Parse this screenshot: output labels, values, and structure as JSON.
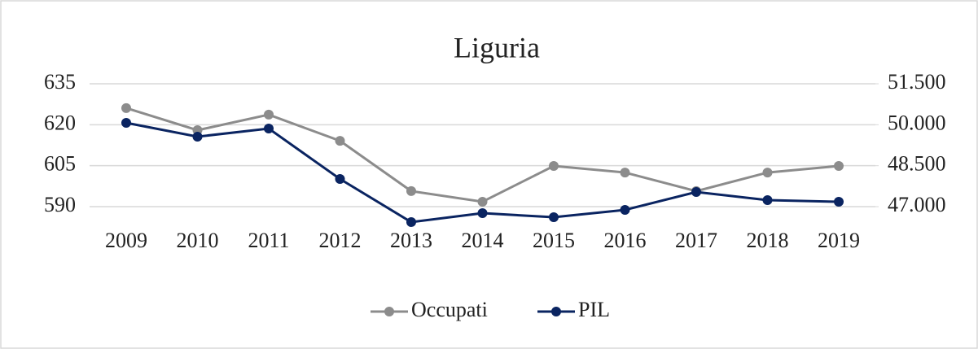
{
  "chart_data": {
    "type": "line",
    "title": "Liguria",
    "categories": [
      "2009",
      "2010",
      "2011",
      "2012",
      "2013",
      "2014",
      "2015",
      "2016",
      "2017",
      "2018",
      "2019"
    ],
    "series": [
      {
        "name": "Occupati",
        "color": "#8c8c8c",
        "values": [
          626.1,
          618.0,
          623.7,
          614.1,
          595.7,
          591.8,
          604.9,
          602.5,
          595.7,
          602.5,
          604.9
        ]
      },
      {
        "name": "PIL",
        "color": "#0a2461",
        "axis": "y2",
        "values": [
          50070,
          49563,
          49861,
          48013,
          46434,
          46762,
          46613,
          46881,
          47537,
          47239,
          47179
        ]
      }
    ],
    "ylim": [
      580,
      640
    ],
    "yticks": [
      590,
      605,
      620,
      635
    ],
    "y2lim": [
      46000,
      52000
    ],
    "y2ticks": [
      {
        "value": 47000,
        "label": "47.000"
      },
      {
        "value": 48500,
        "label": "48.500"
      },
      {
        "value": 50000,
        "label": "50.000"
      },
      {
        "value": 51500,
        "label": "51.500"
      }
    ],
    "grid": true,
    "legend": "bottom"
  }
}
